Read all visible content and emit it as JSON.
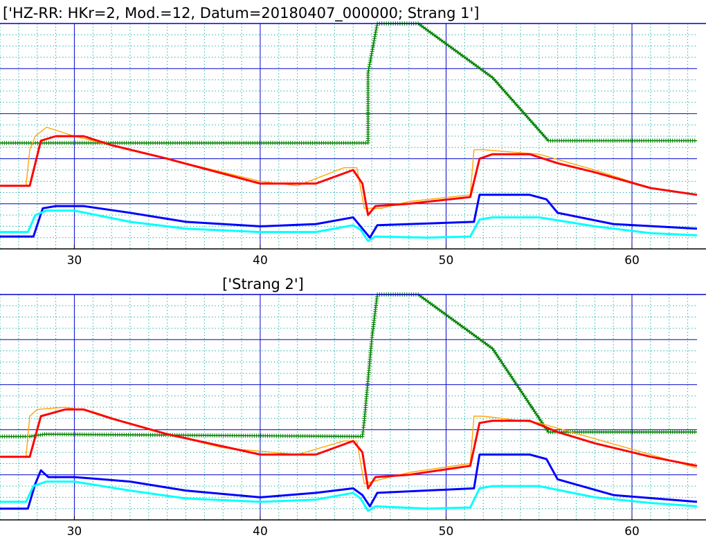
{
  "chart_data": [
    {
      "type": "line",
      "title": "['HZ-RR: HKr=2, Mod.=12, Datum=20180407_000000; Strang 1']",
      "xlabel": "",
      "ylabel": "",
      "xlim": [
        26,
        63.5
      ],
      "ylim": [
        0,
        100
      ],
      "grid": true,
      "xticks": [
        30,
        40,
        50,
        60
      ],
      "xtick_labels": [
        "30",
        "40",
        "50",
        "60"
      ],
      "series": [
        {
          "color": "#008000",
          "marker": "+",
          "x": [
            26,
            45.8,
            45.8,
            46.3,
            48.5,
            52.5,
            55.5,
            63.5
          ],
          "y": [
            47,
            47,
            78,
            100,
            100,
            76,
            48,
            48
          ]
        },
        {
          "color": "#ffa500",
          "x": [
            26,
            27.4,
            27.6,
            27.9,
            28.5,
            30,
            31.5,
            35,
            40,
            42,
            44.5,
            45.2,
            45.6,
            46.5,
            48,
            51.3,
            51.5,
            52,
            55,
            58,
            61,
            63.5
          ],
          "y": [
            28,
            28,
            44,
            50,
            54,
            50,
            47,
            40,
            30,
            28,
            36,
            36,
            18,
            18,
            21,
            24,
            44,
            44,
            42,
            35,
            27,
            24
          ]
        },
        {
          "color": "#ff0000",
          "x": [
            26,
            27.6,
            28.2,
            29,
            30.5,
            32,
            35,
            40,
            43,
            45,
            45.5,
            45.8,
            46.2,
            48,
            51.3,
            51.8,
            52.5,
            54.5,
            56,
            58,
            61,
            63.5
          ],
          "y": [
            28,
            28,
            48,
            50,
            50,
            46,
            40,
            29,
            29,
            35,
            29,
            15,
            19,
            20,
            23,
            40,
            42,
            42,
            38,
            34,
            27,
            24
          ]
        },
        {
          "color": "#0000ff",
          "x": [
            26,
            27.8,
            28.3,
            29,
            30.5,
            33,
            36,
            40,
            43,
            45,
            45.5,
            45.9,
            46.3,
            51.5,
            51.8,
            52.5,
            54.5,
            55.4,
            56,
            59,
            63.5
          ],
          "y": [
            5.5,
            5.5,
            18,
            19,
            19,
            16,
            12,
            10,
            11,
            14,
            9,
            5,
            10.5,
            12,
            24,
            24,
            24,
            22,
            16,
            11,
            9
          ]
        },
        {
          "color": "#00ffff",
          "x": [
            26,
            27.5,
            27.9,
            28.5,
            30,
            33,
            36,
            40,
            43,
            45,
            45.4,
            45.8,
            46.2,
            49,
            51.3,
            51.8,
            52.5,
            55,
            58,
            61,
            63.5
          ],
          "y": [
            7.5,
            7.5,
            15,
            17,
            17,
            12,
            9,
            7.5,
            7.5,
            10.5,
            8.5,
            3.5,
            5.5,
            5,
            5.5,
            13,
            14,
            14,
            10,
            7,
            6
          ]
        }
      ]
    },
    {
      "type": "line",
      "title": "['Strang 2']",
      "xlabel": "",
      "ylabel": "",
      "xlim": [
        26,
        63.5
      ],
      "ylim": [
        0,
        100
      ],
      "grid": true,
      "xticks": [
        30,
        40,
        50,
        60
      ],
      "xtick_labels": [
        "30",
        "40",
        "50",
        "60"
      ],
      "series": [
        {
          "color": "#008000",
          "marker": "+",
          "x": [
            26,
            27.6,
            28.4,
            45.5,
            45.6,
            46,
            46.3,
            48.5,
            52.5,
            55.5,
            63.5
          ],
          "y": [
            37,
            37,
            38,
            37,
            44,
            80,
            100,
            100,
            76,
            39,
            39
          ]
        },
        {
          "color": "#ffa500",
          "x": [
            26,
            27.4,
            27.6,
            28,
            29.5,
            31,
            34,
            38,
            42,
            44.5,
            45.2,
            45.6,
            46.5,
            48,
            51.3,
            51.5,
            52,
            55,
            58,
            61,
            63.5
          ],
          "y": [
            28,
            28,
            46,
            49,
            50,
            48,
            40,
            32,
            29,
            35,
            35,
            16,
            18,
            21,
            25,
            46,
            46,
            43,
            36,
            29,
            23
          ]
        },
        {
          "color": "#ff0000",
          "x": [
            26,
            27.6,
            28.2,
            29.5,
            30.5,
            32,
            35,
            40,
            43,
            45,
            45.5,
            45.8,
            46.2,
            48,
            51.3,
            51.8,
            52.5,
            54.5,
            56,
            58,
            61,
            63.5
          ],
          "y": [
            28,
            28,
            46,
            49,
            49,
            45,
            38,
            29,
            29,
            35,
            30,
            14,
            19,
            20,
            24,
            43,
            44,
            44,
            39,
            34,
            28,
            24
          ]
        },
        {
          "color": "#0000ff",
          "x": [
            26,
            27.5,
            27.9,
            28.2,
            28.6,
            30,
            33,
            36,
            40,
            43,
            45,
            45.5,
            45.9,
            46.3,
            51.5,
            51.8,
            52.5,
            54.5,
            55.4,
            56,
            59,
            63.5
          ],
          "y": [
            5,
            5,
            16,
            22,
            19,
            19,
            17,
            13,
            10,
            12,
            14,
            11,
            6,
            12,
            14,
            29,
            29,
            29,
            27,
            18,
            11,
            8
          ]
        },
        {
          "color": "#00ffff",
          "x": [
            26,
            27.4,
            27.8,
            28.5,
            30,
            33,
            36,
            40,
            43,
            45,
            45.4,
            45.8,
            46.2,
            49,
            51.3,
            51.8,
            52.5,
            55,
            58,
            61,
            63.5
          ],
          "y": [
            8,
            8,
            15,
            17,
            17,
            13,
            9.5,
            8,
            9,
            12,
            9.5,
            4,
            6,
            5,
            5.5,
            14,
            15,
            15,
            10,
            7.5,
            6
          ]
        }
      ]
    }
  ]
}
